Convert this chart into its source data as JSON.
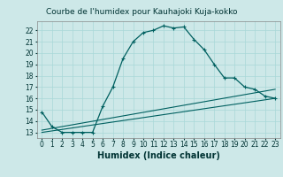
{
  "title": "Courbe de l'humidex pour Kauhajoki Kuja-kokko",
  "xlabel": "Humidex (Indice chaleur)",
  "bg_color": "#cde8e8",
  "line_color": "#006060",
  "xlim": [
    -0.5,
    23.5
  ],
  "ylim": [
    12.5,
    22.8
  ],
  "xticks": [
    0,
    1,
    2,
    3,
    4,
    5,
    6,
    7,
    8,
    9,
    10,
    11,
    12,
    13,
    14,
    15,
    16,
    17,
    18,
    19,
    20,
    21,
    22,
    23
  ],
  "yticks": [
    13,
    14,
    15,
    16,
    17,
    18,
    19,
    20,
    21,
    22
  ],
  "curve1_x": [
    0,
    1,
    2,
    3,
    4,
    5,
    6,
    7,
    8,
    9,
    10,
    11,
    12,
    13,
    14,
    15,
    16,
    17,
    18,
    19,
    20,
    21,
    22,
    23
  ],
  "curve1_y": [
    14.8,
    13.5,
    13.0,
    13.0,
    13.0,
    13.0,
    15.3,
    17.0,
    19.5,
    21.0,
    21.8,
    22.0,
    22.4,
    22.2,
    22.3,
    21.2,
    20.3,
    19.0,
    17.8,
    17.8,
    17.0,
    16.8,
    16.2,
    16.0
  ],
  "curve2_x": [
    0,
    23
  ],
  "curve2_y": [
    13.0,
    16.0
  ],
  "curve3_x": [
    0,
    23
  ],
  "curve3_y": [
    13.2,
    16.8
  ],
  "grid_color": "#a8d8d8",
  "title_fontsize": 6.5,
  "xlabel_fontsize": 7,
  "tick_fontsize": 5.5
}
